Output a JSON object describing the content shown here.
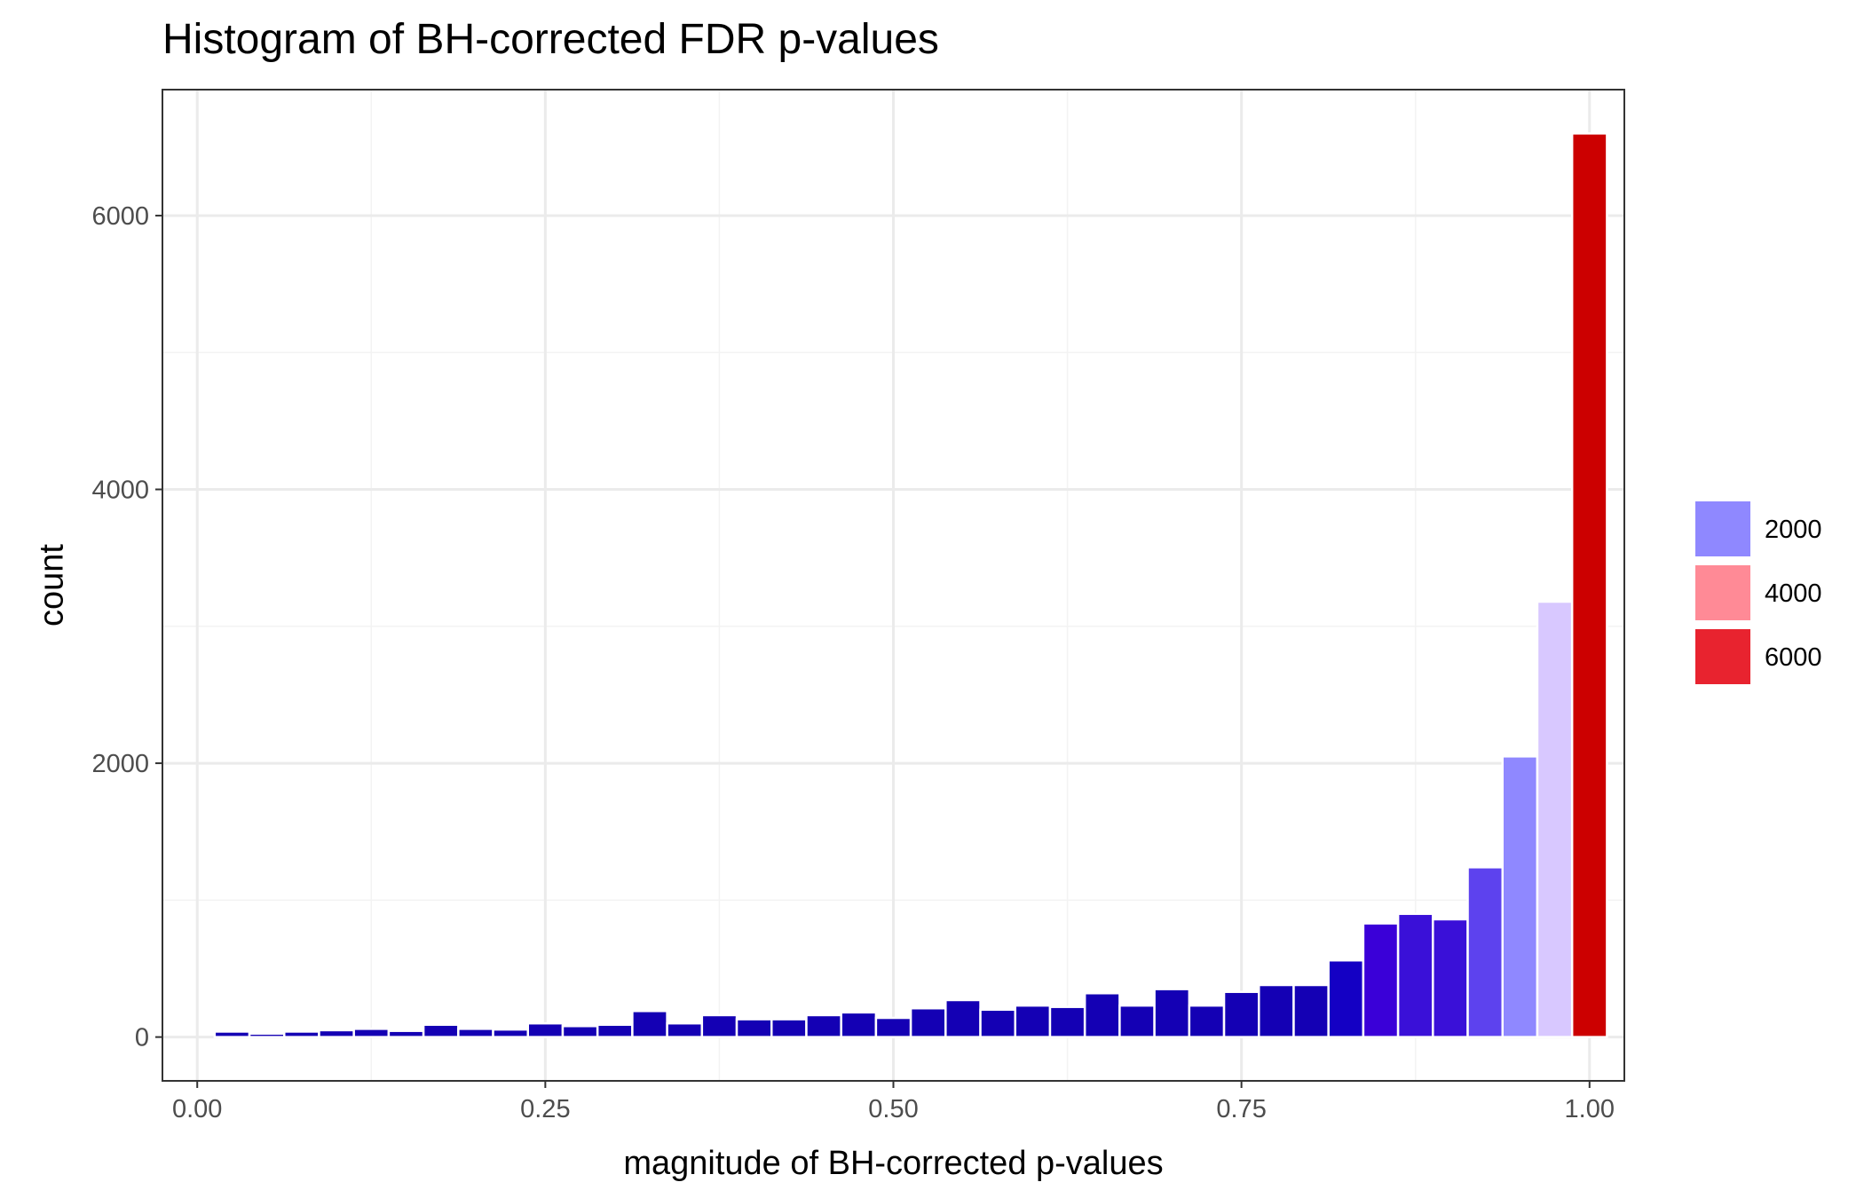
{
  "chart_data": {
    "type": "bar",
    "title": "Histogram of BH-corrected FDR p-values",
    "xlabel": "magnitude of BH-corrected p-values",
    "ylabel": "count",
    "xlim": [
      -0.025,
      1.025
    ],
    "ylim": [
      -320,
      6920
    ],
    "x_ticks": [
      0.0,
      0.25,
      0.5,
      0.75,
      1.0
    ],
    "x_tick_labels": [
      "0.00",
      "0.25",
      "0.50",
      "0.75",
      "1.00"
    ],
    "y_ticks": [
      0,
      2000,
      4000,
      6000
    ],
    "y_tick_labels": [
      "0",
      "2000",
      "4000",
      "6000"
    ],
    "grid": true,
    "bin_width": 0.025,
    "bins": [
      {
        "x": 0.0,
        "count": 0,
        "color": "#1400b4"
      },
      {
        "x": 0.025,
        "count": 40,
        "color": "#1400b4"
      },
      {
        "x": 0.05,
        "count": 25,
        "color": "#1400b4"
      },
      {
        "x": 0.075,
        "count": 40,
        "color": "#1400b4"
      },
      {
        "x": 0.1,
        "count": 50,
        "color": "#1400b4"
      },
      {
        "x": 0.125,
        "count": 60,
        "color": "#1400b4"
      },
      {
        "x": 0.15,
        "count": 45,
        "color": "#1400b4"
      },
      {
        "x": 0.175,
        "count": 90,
        "color": "#1400b4"
      },
      {
        "x": 0.2,
        "count": 60,
        "color": "#1400b4"
      },
      {
        "x": 0.225,
        "count": 55,
        "color": "#1400b4"
      },
      {
        "x": 0.25,
        "count": 100,
        "color": "#1400b4"
      },
      {
        "x": 0.275,
        "count": 80,
        "color": "#1400b4"
      },
      {
        "x": 0.3,
        "count": 90,
        "color": "#1400b4"
      },
      {
        "x": 0.325,
        "count": 190,
        "color": "#1400b4"
      },
      {
        "x": 0.35,
        "count": 100,
        "color": "#1400b4"
      },
      {
        "x": 0.375,
        "count": 160,
        "color": "#1400b4"
      },
      {
        "x": 0.4,
        "count": 130,
        "color": "#1400b4"
      },
      {
        "x": 0.425,
        "count": 130,
        "color": "#1400b4"
      },
      {
        "x": 0.45,
        "count": 160,
        "color": "#1400b4"
      },
      {
        "x": 0.475,
        "count": 180,
        "color": "#1400b4"
      },
      {
        "x": 0.5,
        "count": 140,
        "color": "#1400b4"
      },
      {
        "x": 0.525,
        "count": 210,
        "color": "#1400b4"
      },
      {
        "x": 0.55,
        "count": 270,
        "color": "#1400b4"
      },
      {
        "x": 0.575,
        "count": 200,
        "color": "#1400b4"
      },
      {
        "x": 0.6,
        "count": 230,
        "color": "#1400b4"
      },
      {
        "x": 0.625,
        "count": 220,
        "color": "#1400b4"
      },
      {
        "x": 0.65,
        "count": 320,
        "color": "#1400b4"
      },
      {
        "x": 0.675,
        "count": 230,
        "color": "#1400b4"
      },
      {
        "x": 0.7,
        "count": 350,
        "color": "#1400b4"
      },
      {
        "x": 0.725,
        "count": 230,
        "color": "#1400b4"
      },
      {
        "x": 0.75,
        "count": 330,
        "color": "#1400b4"
      },
      {
        "x": 0.775,
        "count": 380,
        "color": "#1400b4"
      },
      {
        "x": 0.8,
        "count": 380,
        "color": "#1400b4"
      },
      {
        "x": 0.825,
        "count": 560,
        "color": "#1400c4"
      },
      {
        "x": 0.85,
        "count": 830,
        "color": "#3a00d8"
      },
      {
        "x": 0.875,
        "count": 900,
        "color": "#3a10d8"
      },
      {
        "x": 0.9,
        "count": 860,
        "color": "#3a10d8"
      },
      {
        "x": 0.925,
        "count": 1240,
        "color": "#5d42ee"
      },
      {
        "x": 0.95,
        "count": 2050,
        "color": "#8f88ff"
      },
      {
        "x": 0.975,
        "count": 3180,
        "color": "#d8c8ff"
      },
      {
        "x": 1.0,
        "count": 6600,
        "color": "#cc0000"
      }
    ],
    "legend": {
      "placement": "right",
      "entries": [
        {
          "label": "2000",
          "color": "#8f88ff"
        },
        {
          "label": "4000",
          "color": "#ff8a96"
        },
        {
          "label": "6000",
          "color": "#e8232f"
        }
      ]
    },
    "colors": {
      "panel_border": "#333333",
      "grid_major": "#ebebeb",
      "grid_minor": "#f3f3f3",
      "tick": "#333333",
      "tick_label": "#4d4d4d"
    }
  }
}
